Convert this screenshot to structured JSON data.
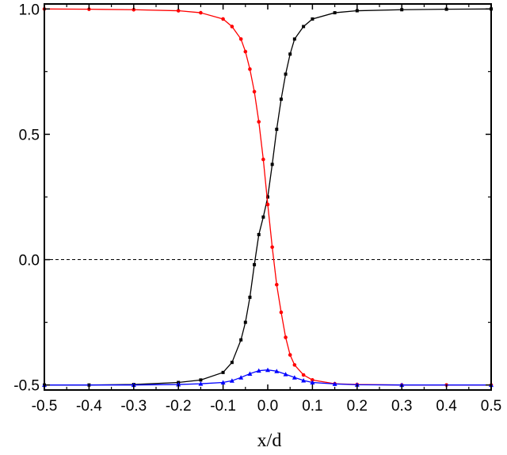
{
  "chart_data": {
    "type": "line",
    "title": "",
    "xlabel": "x/d",
    "ylabel": "",
    "xlim": [
      -0.5,
      0.5
    ],
    "ylim": [
      -0.52,
      1.02
    ],
    "x_ticks": [
      "-0.5",
      "-0.4",
      "-0.3",
      "-0.2",
      "-0.1",
      "0.0",
      "0.1",
      "0.2",
      "0.3",
      "0.4",
      "0.5"
    ],
    "y_ticks": [
      "-0.5",
      "0.0",
      "0.5",
      "1.0"
    ],
    "grid": false,
    "reference_line": {
      "y": 0.0,
      "style": "dashed",
      "color": "#000000"
    },
    "series": [
      {
        "color": "#000000",
        "marker": "square",
        "x": [
          -0.5,
          -0.4,
          -0.3,
          -0.2,
          -0.15,
          -0.1,
          -0.08,
          -0.06,
          -0.05,
          -0.04,
          -0.03,
          -0.02,
          -0.01,
          0.0,
          0.01,
          0.02,
          0.03,
          0.04,
          0.05,
          0.06,
          0.08,
          0.1,
          0.15,
          0.2,
          0.3,
          0.4,
          0.5
        ],
        "y": [
          -0.5,
          -0.5,
          -0.498,
          -0.49,
          -0.48,
          -0.45,
          -0.41,
          -0.32,
          -0.25,
          -0.15,
          -0.02,
          0.1,
          0.17,
          0.25,
          0.38,
          0.52,
          0.64,
          0.74,
          0.82,
          0.88,
          0.93,
          0.96,
          0.985,
          0.993,
          0.997,
          0.999,
          1.0
        ]
      },
      {
        "color": "#ff0000",
        "marker": "circle",
        "x": [
          -0.5,
          -0.4,
          -0.3,
          -0.2,
          -0.15,
          -0.1,
          -0.08,
          -0.06,
          -0.05,
          -0.04,
          -0.03,
          -0.02,
          -0.01,
          0.0,
          0.01,
          0.02,
          0.03,
          0.04,
          0.05,
          0.06,
          0.08,
          0.1,
          0.15,
          0.2,
          0.3,
          0.4,
          0.5
        ],
        "y": [
          1.0,
          0.999,
          0.997,
          0.993,
          0.985,
          0.96,
          0.93,
          0.88,
          0.83,
          0.76,
          0.67,
          0.55,
          0.4,
          0.22,
          0.05,
          -0.1,
          -0.21,
          -0.31,
          -0.38,
          -0.42,
          -0.46,
          -0.48,
          -0.495,
          -0.498,
          -0.5,
          -0.5,
          -0.5
        ]
      },
      {
        "color": "#0000ff",
        "marker": "triangle",
        "x": [
          -0.5,
          -0.3,
          -0.2,
          -0.15,
          -0.1,
          -0.08,
          -0.06,
          -0.04,
          -0.02,
          0.0,
          0.02,
          0.04,
          0.06,
          0.08,
          0.1,
          0.15,
          0.2,
          0.3,
          0.5
        ],
        "y": [
          -0.5,
          -0.5,
          -0.498,
          -0.495,
          -0.49,
          -0.483,
          -0.47,
          -0.455,
          -0.443,
          -0.44,
          -0.445,
          -0.457,
          -0.47,
          -0.482,
          -0.49,
          -0.496,
          -0.499,
          -0.5,
          -0.5
        ]
      }
    ]
  }
}
